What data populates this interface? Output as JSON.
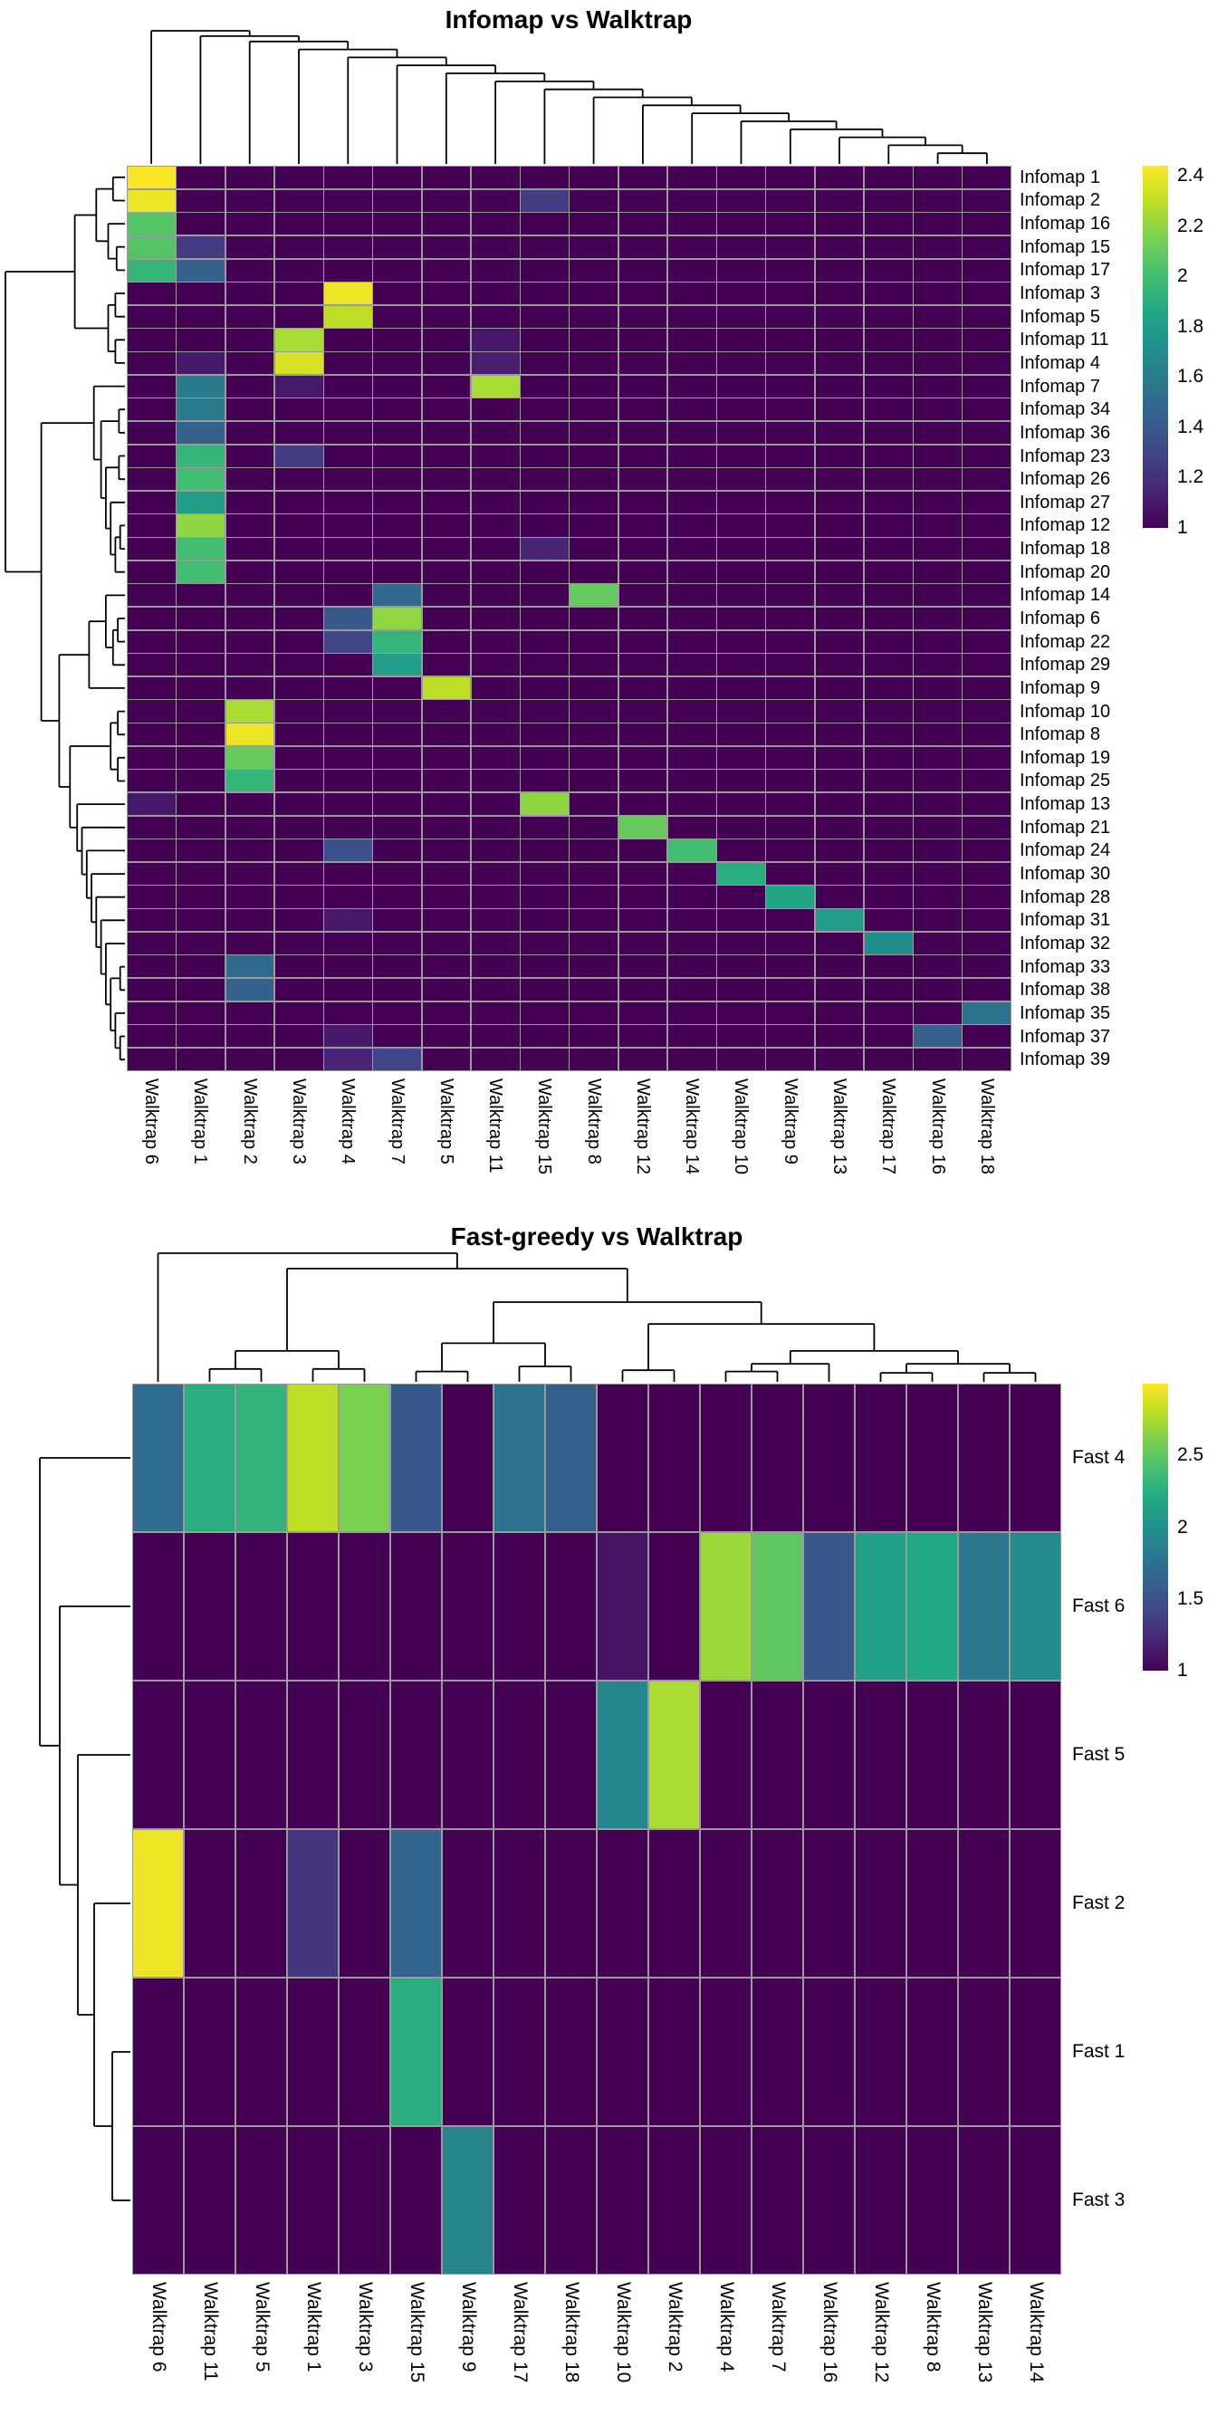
{
  "chart_data": [
    {
      "type": "heatmap",
      "title": "Infomap vs Walktrap",
      "rows": [
        "Infomap 1",
        "Infomap 2",
        "Infomap 16",
        "Infomap 15",
        "Infomap 17",
        "Infomap 3",
        "Infomap 5",
        "Infomap 11",
        "Infomap 4",
        "Infomap 7",
        "Infomap 34",
        "Infomap 36",
        "Infomap 23",
        "Infomap 26",
        "Infomap 27",
        "Infomap 12",
        "Infomap 18",
        "Infomap 20",
        "Infomap 14",
        "Infomap 6",
        "Infomap 22",
        "Infomap 29",
        "Infomap 9",
        "Infomap 10",
        "Infomap 8",
        "Infomap 19",
        "Infomap 25",
        "Infomap 13",
        "Infomap 21",
        "Infomap 24",
        "Infomap 30",
        "Infomap 28",
        "Infomap 31",
        "Infomap 32",
        "Infomap 33",
        "Infomap 38",
        "Infomap 35",
        "Infomap 37",
        "Infomap 39"
      ],
      "cols": [
        "Walktrap 6",
        "Walktrap 1",
        "Walktrap 2",
        "Walktrap 3",
        "Walktrap 4",
        "Walktrap 7",
        "Walktrap 5",
        "Walktrap 11",
        "Walktrap 15",
        "Walktrap 8",
        "Walktrap 12",
        "Walktrap 14",
        "Walktrap 10",
        "Walktrap 9",
        "Walktrap 13",
        "Walktrap 17",
        "Walktrap 16",
        "Walktrap 18"
      ],
      "background_value": 1,
      "color_domain": [
        1,
        2.44
      ],
      "colorbar_ticks": [
        2.4,
        2.2,
        2,
        1.8,
        1.6,
        1.4,
        1.2,
        1
      ],
      "cells": [
        [
          "Infomap 1",
          "Walktrap 6",
          2.43
        ],
        [
          "Infomap 2",
          "Walktrap 6",
          2.4
        ],
        [
          "Infomap 2",
          "Walktrap 15",
          1.25
        ],
        [
          "Infomap 16",
          "Walktrap 6",
          2.05
        ],
        [
          "Infomap 15",
          "Walktrap 6",
          2.05
        ],
        [
          "Infomap 15",
          "Walktrap 1",
          1.25
        ],
        [
          "Infomap 17",
          "Walktrap 6",
          1.95
        ],
        [
          "Infomap 17",
          "Walktrap 1",
          1.45
        ],
        [
          "Infomap 3",
          "Walktrap 4",
          2.4
        ],
        [
          "Infomap 5",
          "Walktrap 4",
          2.3
        ],
        [
          "Infomap 11",
          "Walktrap 3",
          2.25
        ],
        [
          "Infomap 11",
          "Walktrap 11",
          1.1
        ],
        [
          "Infomap 4",
          "Walktrap 3",
          2.35
        ],
        [
          "Infomap 4",
          "Walktrap 1",
          1.1
        ],
        [
          "Infomap 4",
          "Walktrap 11",
          1.12
        ],
        [
          "Infomap 7",
          "Walktrap 1",
          1.6
        ],
        [
          "Infomap 7",
          "Walktrap 3",
          1.1
        ],
        [
          "Infomap 7",
          "Walktrap 11",
          2.25
        ],
        [
          "Infomap 34",
          "Walktrap 1",
          1.6
        ],
        [
          "Infomap 36",
          "Walktrap 1",
          1.45
        ],
        [
          "Infomap 23",
          "Walktrap 1",
          1.95
        ],
        [
          "Infomap 23",
          "Walktrap 3",
          1.25
        ],
        [
          "Infomap 26",
          "Walktrap 1",
          2.0
        ],
        [
          "Infomap 27",
          "Walktrap 1",
          1.8
        ],
        [
          "Infomap 12",
          "Walktrap 1",
          2.2
        ],
        [
          "Infomap 18",
          "Walktrap 1",
          2.0
        ],
        [
          "Infomap 18",
          "Walktrap 15",
          1.15
        ],
        [
          "Infomap 20",
          "Walktrap 1",
          2.0
        ],
        [
          "Infomap 14",
          "Walktrap 7",
          1.5
        ],
        [
          "Infomap 14",
          "Walktrap 8",
          2.1
        ],
        [
          "Infomap 6",
          "Walktrap 4",
          1.4
        ],
        [
          "Infomap 6",
          "Walktrap 7",
          2.2
        ],
        [
          "Infomap 22",
          "Walktrap 4",
          1.3
        ],
        [
          "Infomap 22",
          "Walktrap 7",
          1.95
        ],
        [
          "Infomap 29",
          "Walktrap 7",
          1.8
        ],
        [
          "Infomap 9",
          "Walktrap 5",
          2.3
        ],
        [
          "Infomap 10",
          "Walktrap 2",
          2.25
        ],
        [
          "Infomap 8",
          "Walktrap 2",
          2.4
        ],
        [
          "Infomap 19",
          "Walktrap 2",
          2.1
        ],
        [
          "Infomap 25",
          "Walktrap 2",
          1.95
        ],
        [
          "Infomap 13",
          "Walktrap 15",
          2.2
        ],
        [
          "Infomap 13",
          "Walktrap 6",
          1.1
        ],
        [
          "Infomap 21",
          "Walktrap 12",
          2.1
        ],
        [
          "Infomap 24",
          "Walktrap 14",
          2.0
        ],
        [
          "Infomap 24",
          "Walktrap 4",
          1.35
        ],
        [
          "Infomap 30",
          "Walktrap 10",
          1.9
        ],
        [
          "Infomap 28",
          "Walktrap 9",
          1.85
        ],
        [
          "Infomap 31",
          "Walktrap 13",
          1.8
        ],
        [
          "Infomap 31",
          "Walktrap 4",
          1.1
        ],
        [
          "Infomap 32",
          "Walktrap 17",
          1.7
        ],
        [
          "Infomap 33",
          "Walktrap 2",
          1.5
        ],
        [
          "Infomap 38",
          "Walktrap 2",
          1.45
        ],
        [
          "Infomap 35",
          "Walktrap 18",
          1.55
        ],
        [
          "Infomap 37",
          "Walktrap 16",
          1.45
        ],
        [
          "Infomap 37",
          "Walktrap 4",
          1.1
        ],
        [
          "Infomap 39",
          "Walktrap 4",
          1.15
        ],
        [
          "Infomap 39",
          "Walktrap 7",
          1.3
        ]
      ],
      "col_dendrogram": [
        0,
        [
          1,
          [
            2,
            [
              3,
              [
                4,
                [
                  5,
                  [
                    6,
                    [
                      7,
                      [
                        8,
                        [
                          9,
                          [
                            10,
                            [
                              11,
                              [
                                12,
                                [
                                  13,
                                  [
                                    14,
                                    [
                                      15,
                                      [
                                        16,
                                        17,
                                        0.08
                                      ],
                                      0.14
                                    ],
                                    0.2
                                  ],
                                  0.26
                                ],
                                0.32
                              ],
                              0.38
                            ],
                            0.44
                          ],
                          0.5
                        ],
                        0.56
                      ],
                      0.62
                    ],
                    0.68
                  ],
                  0.74
                ],
                0.8
              ],
              0.86
            ],
            0.92
          ],
          0.96
        ],
        1
      ],
      "row_dendrogram": [
        [
          [
            [
              0,
              1,
              0.1
            ],
            [
              2,
              [
                3,
                4,
                0.07
              ],
              0.14
            ],
            0.24
          ],
          [
            [
              5,
              6,
              0.08
            ],
            [
              7,
              8,
              0.08
            ],
            0.14
          ],
          0.42
        ],
        [
          [
            9,
            [
              [
                10,
                11,
                0.05
              ],
              [
                [
                  12,
                  13,
                  0.05
                ],
                [
                  14,
                  [
                    [
                      15,
                      16,
                      0.04
                    ],
                    17,
                    0.08
                  ],
                  0.12
                ],
                0.16
              ],
              0.2
            ],
            0.26
          ],
          [
            [
              [
                18,
                [
                  [
                    19,
                    20,
                    0.06
                  ],
                  21,
                  0.1
                ],
                0.16
              ],
              22,
              0.3
            ],
            [
              [
                [
                  23,
                  24,
                  0.06
                ],
                [
                  25,
                  26,
                  0.06
                ],
                0.12
              ],
              [
                27,
                [
                  28,
                  [
                    29,
                    [
                      30,
                      [
                        31,
                        [
                          32,
                          [
                            33,
                            [
                              [
                                34,
                                35,
                                0.04
                              ],
                              [
                                36,
                                [
                                  37,
                                  38,
                                  0.04
                                ],
                                0.08
                              ],
                              0.12
                            ],
                            0.16
                          ],
                          0.2
                        ],
                        0.24
                      ],
                      0.28
                    ],
                    0.32
                  ],
                  0.36
                ],
                0.4
              ],
              0.46
            ],
            0.55
          ],
          0.7
        ],
        1.0
      ]
    },
    {
      "type": "heatmap",
      "title": "Fast-greedy vs Walktrap",
      "rows": [
        "Fast 4",
        "Fast 6",
        "Fast 5",
        "Fast 2",
        "Fast 1",
        "Fast 3"
      ],
      "cols": [
        "Walktrap 6",
        "Walktrap 11",
        "Walktrap 5",
        "Walktrap 1",
        "Walktrap 3",
        "Walktrap 15",
        "Walktrap 9",
        "Walktrap 17",
        "Walktrap 18",
        "Walktrap 10",
        "Walktrap 2",
        "Walktrap 4",
        "Walktrap 7",
        "Walktrap 16",
        "Walktrap 12",
        "Walktrap 8",
        "Walktrap 13",
        "Walktrap 14"
      ],
      "background_value": 1,
      "color_domain": [
        1,
        3.0
      ],
      "colorbar_ticks": [
        2.5,
        2,
        1.5,
        1
      ],
      "cells": [
        [
          "Fast 4",
          "Walktrap 6",
          1.7
        ],
        [
          "Fast 4",
          "Walktrap 11",
          2.25
        ],
        [
          "Fast 4",
          "Walktrap 5",
          2.3
        ],
        [
          "Fast 4",
          "Walktrap 1",
          2.8
        ],
        [
          "Fast 4",
          "Walktrap 3",
          2.6
        ],
        [
          "Fast 4",
          "Walktrap 15",
          1.55
        ],
        [
          "Fast 4",
          "Walktrap 17",
          1.75
        ],
        [
          "Fast 4",
          "Walktrap 18",
          1.6
        ],
        [
          "Fast 6",
          "Walktrap 10",
          1.1
        ],
        [
          "Fast 6",
          "Walktrap 4",
          2.7
        ],
        [
          "Fast 6",
          "Walktrap 7",
          2.5
        ],
        [
          "Fast 6",
          "Walktrap 16",
          1.55
        ],
        [
          "Fast 6",
          "Walktrap 12",
          2.15
        ],
        [
          "Fast 6",
          "Walktrap 8",
          2.2
        ],
        [
          "Fast 6",
          "Walktrap 13",
          1.8
        ],
        [
          "Fast 6",
          "Walktrap 14",
          1.95
        ],
        [
          "Fast 5",
          "Walktrap 10",
          1.9
        ],
        [
          "Fast 5",
          "Walktrap 2",
          2.75
        ],
        [
          "Fast 2",
          "Walktrap 6",
          2.95
        ],
        [
          "Fast 2",
          "Walktrap 1",
          1.3
        ],
        [
          "Fast 2",
          "Walktrap 15",
          1.65
        ],
        [
          "Fast 1",
          "Walktrap 15",
          2.25
        ],
        [
          "Fast 3",
          "Walktrap 9",
          1.9
        ]
      ],
      "col_dendrogram": [
        0,
        [
          [
            [
              1,
              2,
              0.1
            ],
            [
              3,
              4,
              0.1
            ],
            0.24
          ],
          [
            [
              [
                5,
                6,
                0.08
              ],
              [
                7,
                8,
                0.12
              ],
              0.3
            ],
            [
              [
                9,
                10,
                0.09
              ],
              [
                [
                  [
                    11,
                    12,
                    0.08
                  ],
                  13,
                  0.14
                ],
                [
                  [
                    14,
                    15,
                    0.07
                  ],
                  [
                    16,
                    17,
                    0.07
                  ],
                  0.14
                ],
                0.24
              ],
              0.45
            ],
            0.62
          ],
          0.88
        ],
        1.0
      ],
      "row_dendrogram": [
        0,
        [
          1,
          [
            2,
            [
              3,
              [
                4,
                5,
                0.2
              ],
              0.4
            ],
            0.58
          ],
          0.78
        ],
        1.0
      ]
    }
  ]
}
